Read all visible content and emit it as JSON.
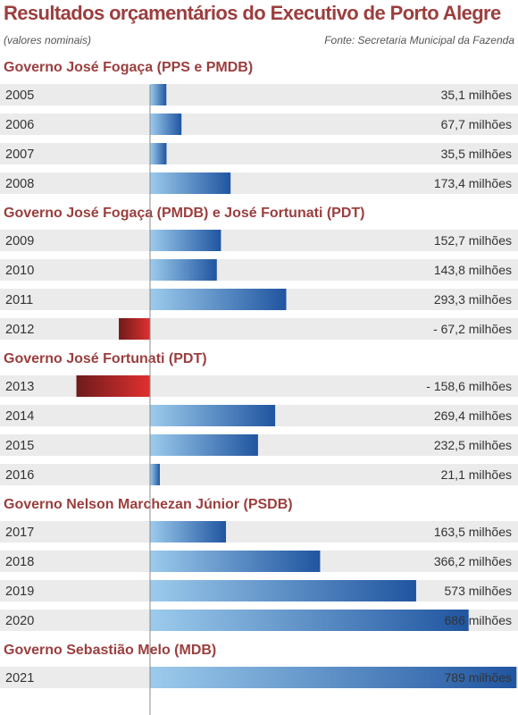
{
  "title": "Resultados orçamentários do Executivo de Porto Alegre",
  "subtitle": "(valores nominais)",
  "source": "Fonte: Secretaria Municipal da Fazenda",
  "colors": {
    "title": "#9b3e3e",
    "row_background": "#ebebeb",
    "positive_bar_light": "#9ccbec",
    "positive_bar_dark": "#2055a0",
    "negative_bar_light": "#e03030",
    "negative_bar_dark": "#6e1b1b",
    "axis": "#888888"
  },
  "chart_data": {
    "type": "bar",
    "orientation": "horizontal",
    "unit": "milhões",
    "groups": [
      {
        "name": "Governo José Fogaça (PPS e PMDB)",
        "rows": [
          {
            "year": "2005",
            "value": 35.1,
            "label": "35,1 milhões"
          },
          {
            "year": "2006",
            "value": 67.7,
            "label": "67,7 milhões"
          },
          {
            "year": "2007",
            "value": 35.5,
            "label": "35,5 milhões"
          },
          {
            "year": "2008",
            "value": 173.4,
            "label": "173,4 milhões"
          }
        ]
      },
      {
        "name": "Governo José Fogaça (PMDB) e José Fortunati (PDT)",
        "rows": [
          {
            "year": "2009",
            "value": 152.7,
            "label": "152,7 milhões"
          },
          {
            "year": "2010",
            "value": 143.8,
            "label": "143,8 milhões"
          },
          {
            "year": "2011",
            "value": 293.3,
            "label": "293,3 milhões"
          },
          {
            "year": "2012",
            "value": -67.2,
            "label": "- 67,2 milhões"
          }
        ]
      },
      {
        "name": "Governo José Fortunati (PDT)",
        "rows": [
          {
            "year": "2013",
            "value": -158.6,
            "label": "- 158,6 milhões"
          },
          {
            "year": "2014",
            "value": 269.4,
            "label": "269,4 milhões"
          },
          {
            "year": "2015",
            "value": 232.5,
            "label": "232,5 milhões"
          },
          {
            "year": "2016",
            "value": 21.1,
            "label": "21,1 milhões"
          }
        ]
      },
      {
        "name": "Governo Nelson Marchezan Júnior (PSDB)",
        "rows": [
          {
            "year": "2017",
            "value": 163.5,
            "label": "163,5 milhões"
          },
          {
            "year": "2018",
            "value": 366.2,
            "label": "366,2 milhões"
          },
          {
            "year": "2019",
            "value": 573,
            "label": "573 milhões"
          },
          {
            "year": "2020",
            "value": 686,
            "label": "686 milhões"
          }
        ]
      },
      {
        "name": "Governo Sebastião Melo (MDB)",
        "rows": [
          {
            "year": "2021",
            "value": 789,
            "label": "789 milhões"
          }
        ]
      }
    ]
  }
}
